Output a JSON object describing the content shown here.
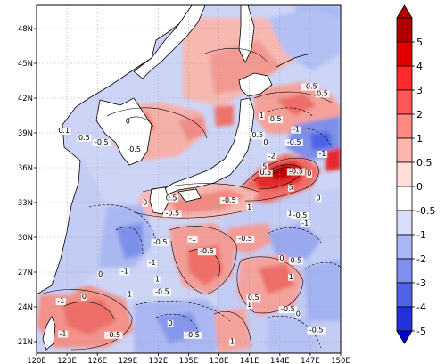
{
  "map": {
    "region": "Northwest Pacific / East Asia",
    "lon_range": [
      120,
      150
    ],
    "lat_range": [
      20,
      50
    ],
    "x_ticks": [
      "120E",
      "123E",
      "126E",
      "129E",
      "132E",
      "135E",
      "138E",
      "141E",
      "144E",
      "147E",
      "150E"
    ],
    "y_ticks": [
      "21N",
      "24N",
      "27N",
      "30N",
      "33N",
      "36N",
      "39N",
      "42N",
      "45N",
      "48N"
    ],
    "contour_labels": [
      {
        "text": "-0.5",
        "lon": 147.0,
        "lat": 42.8
      },
      {
        "text": "0.5",
        "lon": 148.2,
        "lat": 42.2
      },
      {
        "text": "1",
        "lon": 142.2,
        "lat": 40.3
      },
      {
        "text": "0.5",
        "lon": 143.6,
        "lat": 40.0
      },
      {
        "text": "0.5",
        "lon": 141.8,
        "lat": 38.6
      },
      {
        "text": "-1",
        "lon": 145.6,
        "lat": 39.1
      },
      {
        "text": "-0.5",
        "lon": 145.4,
        "lat": 38.0
      },
      {
        "text": "-1",
        "lon": 148.2,
        "lat": 37.0
      },
      {
        "text": "-2",
        "lon": 143.2,
        "lat": 36.8
      },
      {
        "text": "0",
        "lon": 142.6,
        "lat": 38.0
      },
      {
        "text": "0.5",
        "lon": 142.6,
        "lat": 35.4
      },
      {
        "text": "-0.5",
        "lon": 145.6,
        "lat": 35.5
      },
      {
        "text": "0",
        "lon": 146.9,
        "lat": 35.3
      },
      {
        "text": "5",
        "lon": 142.5,
        "lat": 35.9
      },
      {
        "text": "5",
        "lon": 145.1,
        "lat": 34.1
      },
      {
        "text": "1",
        "lon": 145.0,
        "lat": 31.9
      },
      {
        "text": "-0.5",
        "lon": 146.0,
        "lat": 31.7
      },
      {
        "text": "0",
        "lon": 147.8,
        "lat": 33.2
      },
      {
        "text": "-1",
        "lon": 146.5,
        "lat": 31.0
      },
      {
        "text": "-0.5",
        "lon": 139.0,
        "lat": 33.0
      },
      {
        "text": "1",
        "lon": 141.0,
        "lat": 32.4
      },
      {
        "text": "0.1",
        "lon": 122.7,
        "lat": 39.0
      },
      {
        "text": "0",
        "lon": 129.0,
        "lat": 39.8
      },
      {
        "text": "0.5",
        "lon": 124.7,
        "lat": 38.4
      },
      {
        "text": "-0.5",
        "lon": 126.4,
        "lat": 38.0
      },
      {
        "text": "-0.5",
        "lon": 129.6,
        "lat": 37.4
      },
      {
        "text": "0",
        "lon": 130.7,
        "lat": 32.8
      },
      {
        "text": "0.5",
        "lon": 133.3,
        "lat": 33.2
      },
      {
        "text": "-0.5",
        "lon": 133.4,
        "lat": 31.9
      },
      {
        "text": "-1",
        "lon": 135.4,
        "lat": 29.7
      },
      {
        "text": "-0.5",
        "lon": 136.8,
        "lat": 28.6
      },
      {
        "text": "-0.5",
        "lon": 132.2,
        "lat": 29.4
      },
      {
        "text": "-1",
        "lon": 128.7,
        "lat": 26.9
      },
      {
        "text": "-1",
        "lon": 131.4,
        "lat": 27.6
      },
      {
        "text": "1",
        "lon": 131.9,
        "lat": 26.2
      },
      {
        "text": "1",
        "lon": 129.2,
        "lat": 24.9
      },
      {
        "text": "0",
        "lon": 126.3,
        "lat": 26.6
      },
      {
        "text": "-0.5",
        "lon": 132.4,
        "lat": 25.1
      },
      {
        "text": "-0.5",
        "lon": 140.6,
        "lat": 29.7
      },
      {
        "text": "0",
        "lon": 144.2,
        "lat": 28.0
      },
      {
        "text": "0.5",
        "lon": 145.6,
        "lat": 27.8
      },
      {
        "text": "1",
        "lon": 145.1,
        "lat": 26.4
      },
      {
        "text": "1",
        "lon": 141.0,
        "lat": 24.0
      },
      {
        "text": "0.5",
        "lon": 141.4,
        "lat": 24.6
      },
      {
        "text": "-0.5",
        "lon": 144.8,
        "lat": 23.6
      },
      {
        "text": "0",
        "lon": 145.8,
        "lat": 23.2
      },
      {
        "text": "-0.5",
        "lon": 147.6,
        "lat": 21.8
      },
      {
        "text": "0",
        "lon": 133.2,
        "lat": 22.4
      },
      {
        "text": "-0.5",
        "lon": 135.4,
        "lat": 21.4
      },
      {
        "text": "1",
        "lon": 139.3,
        "lat": 20.8
      },
      {
        "text": "-1",
        "lon": 122.6,
        "lat": 21.5
      },
      {
        "text": "-1",
        "lon": 122.4,
        "lat": 24.3
      },
      {
        "text": "0",
        "lon": 124.7,
        "lat": 24.7
      },
      {
        "text": "-0.5",
        "lon": 127.6,
        "lat": 21.4
      }
    ]
  },
  "colorbar": {
    "labels": [
      "5",
      "4",
      "3",
      "2",
      "1",
      "0.5",
      "0",
      "-0.5",
      "-1",
      "-2",
      "-3",
      "-4",
      "-5"
    ],
    "colors": [
      "#b00000",
      "#e00000",
      "#ff2a2a",
      "#ff5656",
      "#ff8a80",
      "#ffb4ae",
      "#ffdedb",
      "#ffffff",
      "#d8defa",
      "#a9b8f5",
      "#7d90ee",
      "#4e63e6",
      "#2232d8",
      "#0000c8"
    ]
  },
  "palette": {
    "red_strong": "#e02020",
    "red_mid": "#f26d66",
    "red_light": "#f7b6b0",
    "blue_light": "#c7cff4",
    "blue_mid": "#8c9ceb",
    "blue_strong": "#5468e0",
    "land": "#ffffff",
    "grid": "#9a9a9a"
  }
}
